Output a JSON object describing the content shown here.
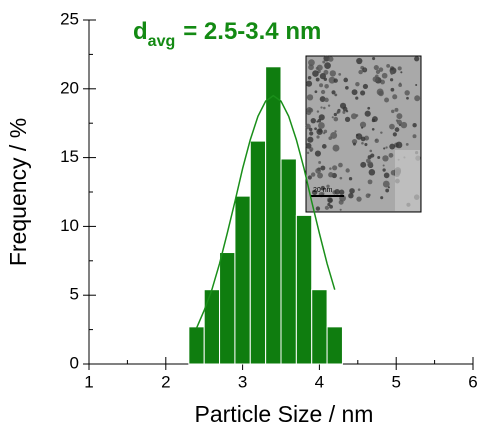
{
  "chart_data": {
    "type": "histogram",
    "title": "d",
    "title_subscript": "avg",
    "title_rest": "= 2.5-3.4 nm",
    "x_label": "Particle Size / nm",
    "y_label": "Frequency / %",
    "bins": [
      2.3,
      2.5,
      2.7,
      2.9,
      3.1,
      3.3,
      3.5,
      3.7,
      3.9,
      4.1,
      4.3
    ],
    "values": [
      2.7,
      5.4,
      8.1,
      12.2,
      16.2,
      21.6,
      14.9,
      10.8,
      5.4,
      2.7
    ],
    "color": "#0f7d0f",
    "fit": {
      "color": "#1a8f1a",
      "x": [
        2.4,
        2.5,
        2.6,
        2.7,
        2.8,
        2.9,
        3.0,
        3.1,
        3.2,
        3.3,
        3.4,
        3.5,
        3.6,
        3.7,
        3.8,
        3.9,
        4.0,
        4.1,
        4.2
      ],
      "values": [
        2.6,
        3.9,
        5.4,
        7.3,
        9.5,
        11.8,
        14.2,
        16.3,
        18.0,
        19.1,
        19.5,
        19.1,
        18.0,
        16.3,
        14.2,
        11.8,
        9.5,
        7.3,
        5.4
      ]
    },
    "xlim": [
      1,
      6
    ],
    "xticks": [
      1,
      2,
      3,
      4,
      5,
      6
    ],
    "ylim": [
      0,
      25
    ],
    "yticks": [
      0,
      5,
      10,
      15,
      20,
      25
    ],
    "inset_scale_label": "20 nm"
  }
}
